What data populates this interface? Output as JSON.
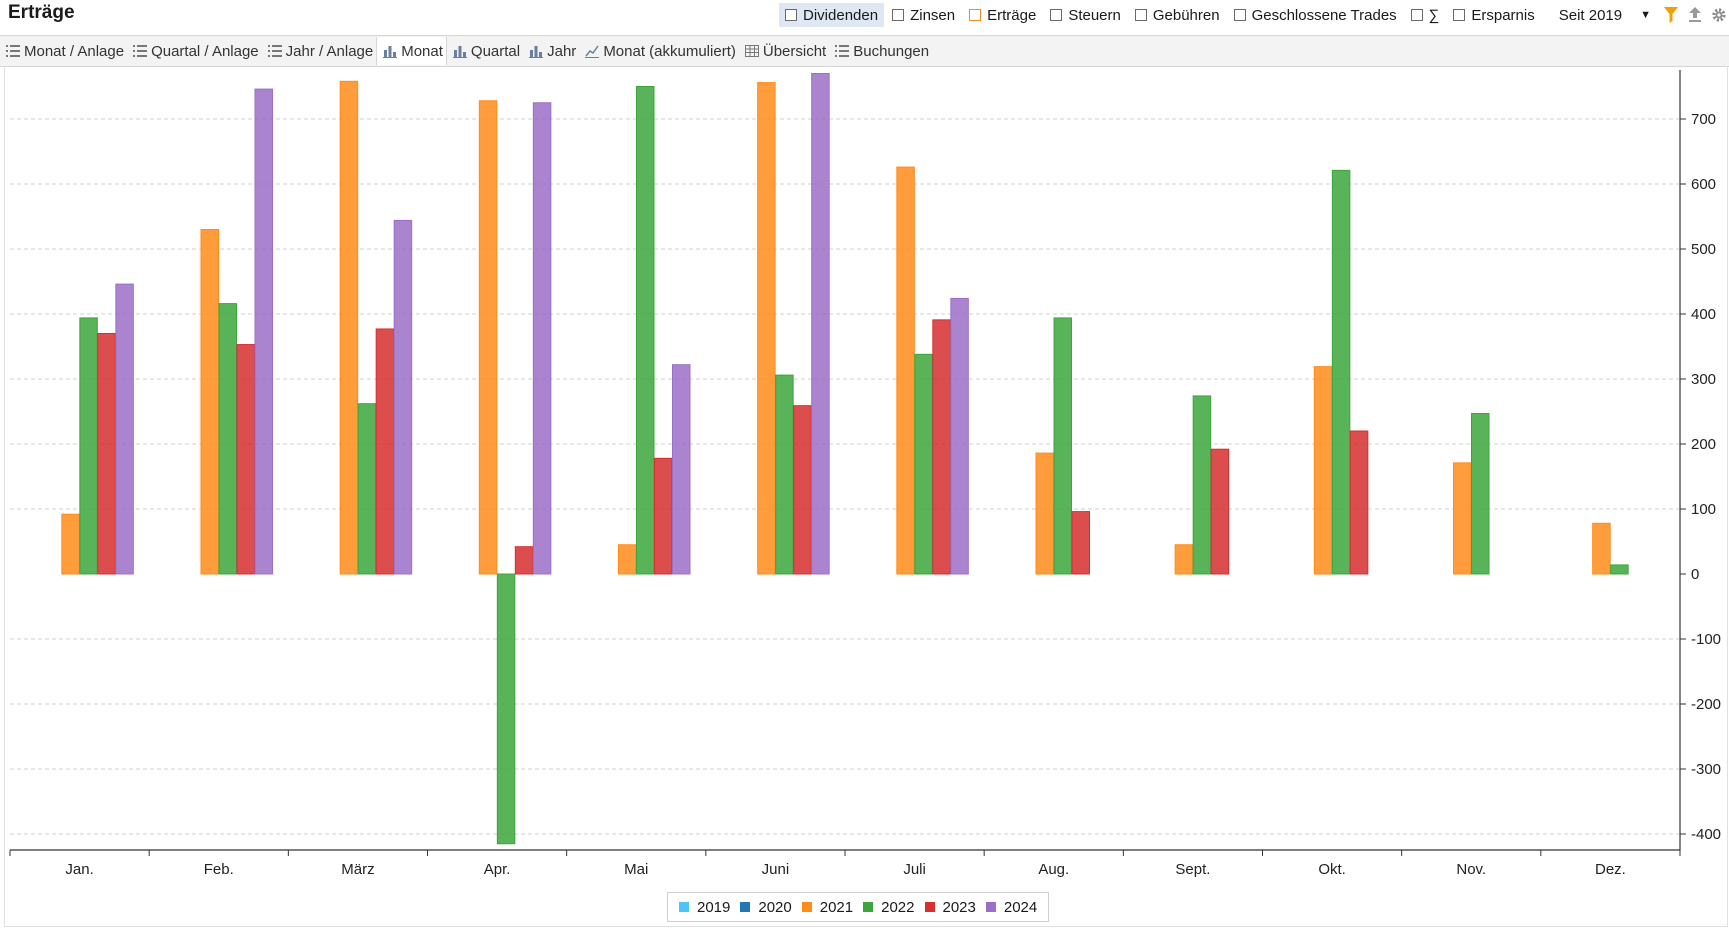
{
  "header": {
    "title": "Erträge",
    "filters": [
      {
        "label": "Dividenden",
        "active": true
      },
      {
        "label": "Zinsen",
        "active": false
      },
      {
        "label": "Erträge",
        "active": false
      },
      {
        "label": "Steuern",
        "active": false
      },
      {
        "label": "Gebühren",
        "active": false
      },
      {
        "label": "Geschlossene Trades",
        "active": false
      },
      {
        "label": "∑",
        "active": false
      },
      {
        "label": "Ersparnis",
        "active": false
      }
    ],
    "since_label": "Seit 2019",
    "icons": [
      "filter-icon",
      "export-icon",
      "settings-icon"
    ],
    "filter_icon_color": "#f0a000"
  },
  "tabs": [
    {
      "label": "Monat / Anlage",
      "icon": "list-icon",
      "active": false
    },
    {
      "label": "Quartal / Anlage",
      "icon": "list-icon",
      "active": false
    },
    {
      "label": "Jahr / Anlage",
      "icon": "list-icon",
      "active": false
    },
    {
      "label": "Monat",
      "icon": "bar-chart-icon",
      "active": true
    },
    {
      "label": "Quartal",
      "icon": "bar-chart-icon",
      "active": false
    },
    {
      "label": "Jahr",
      "icon": "bar-chart-icon",
      "active": false
    },
    {
      "label": "Monat (akkumuliert)",
      "icon": "line-chart-icon",
      "active": false
    },
    {
      "label": "Übersicht",
      "icon": "table-icon",
      "active": false
    },
    {
      "label": "Buchungen",
      "icon": "list-icon",
      "active": false
    }
  ],
  "chart_data": {
    "type": "bar",
    "title": "",
    "xlabel": "",
    "ylabel": "",
    "categories": [
      "Jan.",
      "Feb.",
      "März",
      "Apr.",
      "Mai",
      "Juni",
      "Juli",
      "Aug.",
      "Sept.",
      "Okt.",
      "Nov.",
      "Dez."
    ],
    "ylim": [
      -420,
      770
    ],
    "yticks": [
      -400,
      -300,
      -200,
      -100,
      0,
      100,
      200,
      300,
      400,
      500,
      600,
      700
    ],
    "y_axis_position": "right",
    "grid": true,
    "legend_position": "bottom-center",
    "series": [
      {
        "name": "2019",
        "color": "#4fc3f7",
        "values": [
          0,
          0,
          0,
          0,
          0,
          0,
          0,
          0,
          0,
          0,
          0,
          0
        ]
      },
      {
        "name": "2020",
        "color": "#1f77b4",
        "values": [
          0,
          0,
          0,
          0,
          0,
          0,
          0,
          0,
          0,
          0,
          0,
          0
        ]
      },
      {
        "name": "2021",
        "color": "#ff8c1a",
        "values": [
          92,
          530,
          758,
          728,
          45,
          756,
          626,
          186,
          45,
          319,
          171,
          78
        ]
      },
      {
        "name": "2022",
        "color": "#3ca63c",
        "values": [
          394,
          416,
          262,
          -415,
          750,
          306,
          338,
          394,
          274,
          621,
          247,
          14
        ]
      },
      {
        "name": "2023",
        "color": "#d62f2f",
        "values": [
          370,
          353,
          377,
          42,
          178,
          259,
          391,
          96,
          192,
          220,
          0,
          0
        ]
      },
      {
        "name": "2024",
        "color": "#9b6fc7",
        "values": [
          446,
          746,
          544,
          725,
          322,
          770,
          424,
          0,
          0,
          0,
          0,
          0
        ]
      }
    ]
  }
}
